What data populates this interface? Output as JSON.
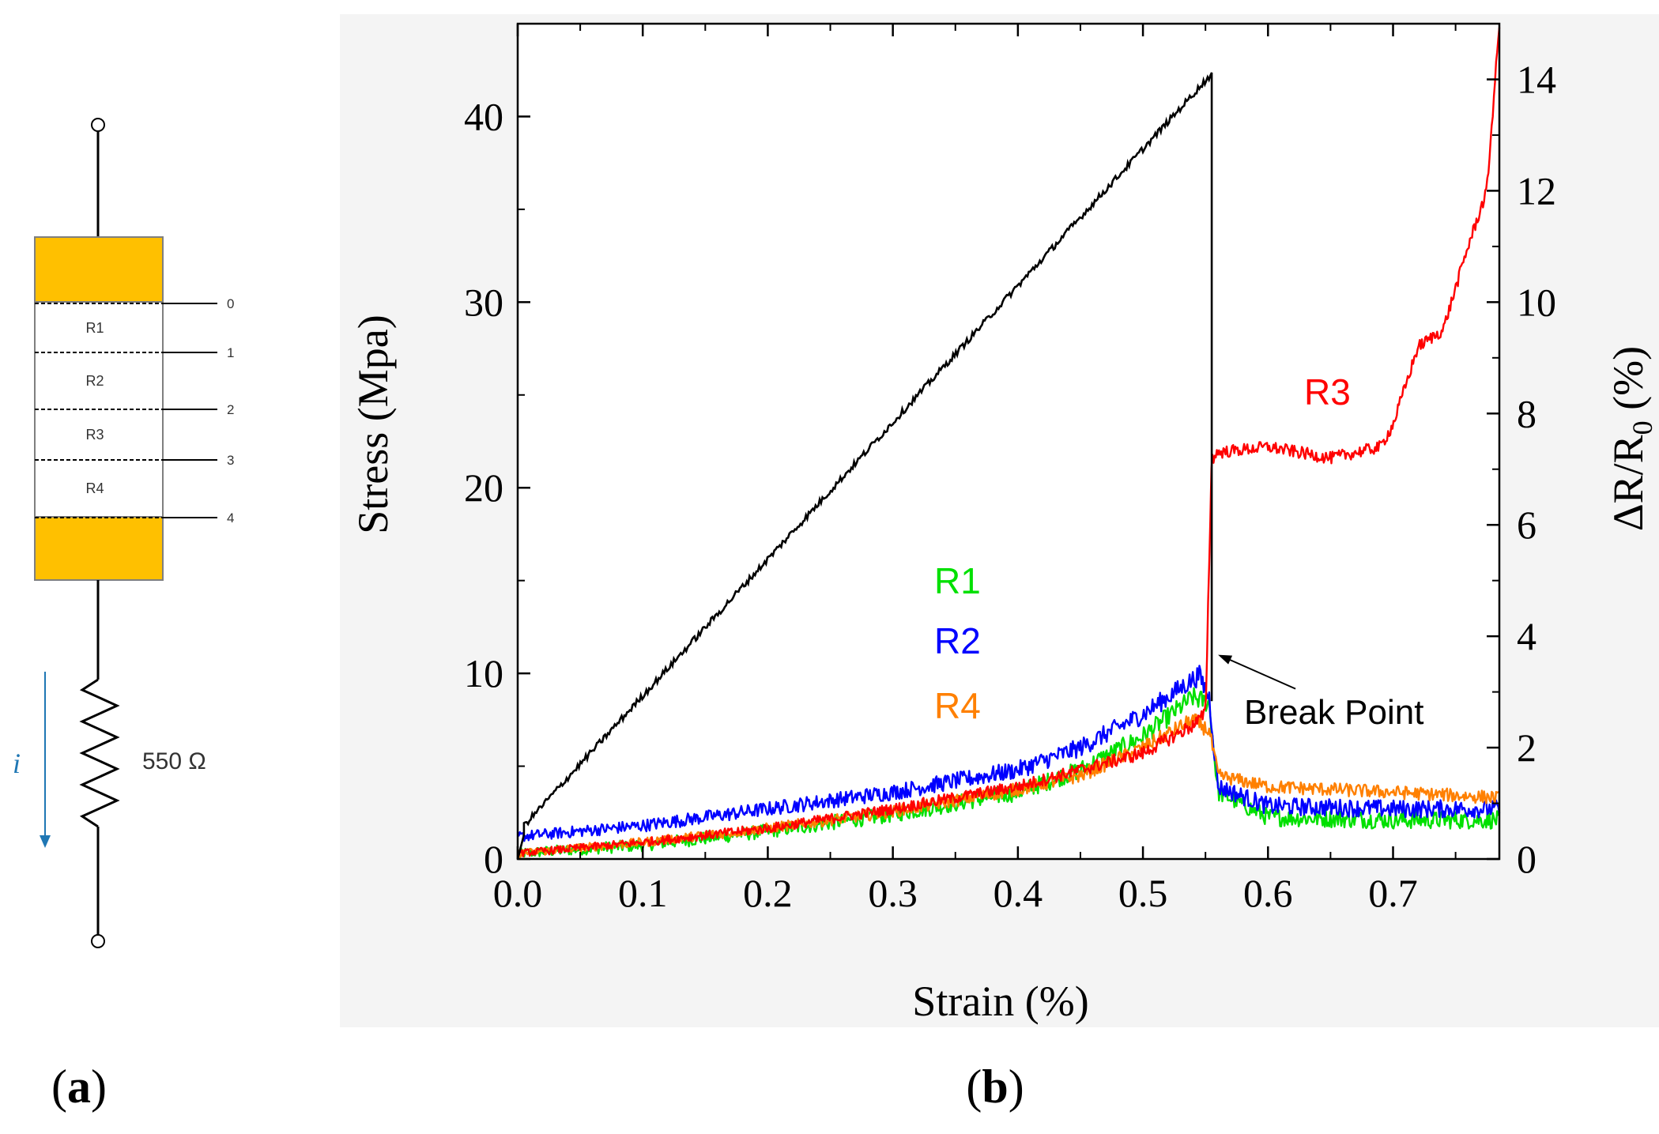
{
  "figure": {
    "panel_a_label": "(a)",
    "panel_b_label": "(b)"
  },
  "circuit": {
    "segments": [
      "R1",
      "R2",
      "R3",
      "R4"
    ],
    "electrodes": [
      "0",
      "1",
      "2",
      "3",
      "4"
    ],
    "resistor_value": "550 Ω",
    "current_symbol": "i",
    "colors": {
      "electrode": "#FFC000",
      "current": "#1F77B4"
    }
  },
  "chart_data": {
    "type": "line",
    "xlabel": "Strain (%)",
    "ylabel_left": "Stress (Mpa)",
    "ylabel_right": "ΔR/R0 (%)",
    "xlim": [
      0.0,
      0.785
    ],
    "ylim_left": [
      0,
      45
    ],
    "ylim_right": [
      0,
      15
    ],
    "x_ticks": [
      "0.0",
      "0.1",
      "0.2",
      "0.3",
      "0.4",
      "0.5",
      "0.6",
      "0.7"
    ],
    "y_left_ticks": [
      "0",
      "10",
      "20",
      "30",
      "40"
    ],
    "y_right_ticks": [
      "0",
      "2",
      "4",
      "6",
      "8",
      "10",
      "12",
      "14"
    ],
    "annotation": {
      "text": "Break Point",
      "x": 0.555,
      "y_left": 11
    },
    "series": [
      {
        "name": "Stress",
        "axis": "left",
        "color": "#000000",
        "x": [
          0.0,
          0.005,
          0.555,
          0.555
        ],
        "y": [
          0.0,
          1.8,
          42.3,
          8.5
        ]
      },
      {
        "name": "R1",
        "axis": "right",
        "color": "#00E000",
        "x": [
          0.0,
          0.1,
          0.2,
          0.3,
          0.4,
          0.45,
          0.5,
          0.54,
          0.553,
          0.56,
          0.6,
          0.7,
          0.785
        ],
        "y": [
          0.1,
          0.25,
          0.5,
          0.8,
          1.2,
          1.6,
          2.2,
          2.9,
          2.8,
          1.2,
          0.75,
          0.7,
          0.7
        ]
      },
      {
        "name": "R2",
        "axis": "right",
        "color": "#0000FF",
        "x": [
          0.0,
          0.1,
          0.2,
          0.3,
          0.4,
          0.45,
          0.5,
          0.545,
          0.553,
          0.56,
          0.6,
          0.7,
          0.785
        ],
        "y": [
          0.4,
          0.6,
          0.9,
          1.2,
          1.6,
          2.0,
          2.6,
          3.3,
          2.9,
          1.3,
          0.95,
          0.9,
          0.9
        ]
      },
      {
        "name": "R3",
        "axis": "right",
        "color": "#FF0000",
        "x": [
          0.0,
          0.1,
          0.2,
          0.3,
          0.4,
          0.5,
          0.54,
          0.55,
          0.555,
          0.56,
          0.6,
          0.65,
          0.69,
          0.7,
          0.72,
          0.74,
          0.76,
          0.775,
          0.785
        ],
        "y": [
          0.1,
          0.3,
          0.55,
          0.9,
          1.3,
          1.9,
          2.4,
          2.6,
          7.2,
          7.3,
          7.4,
          7.2,
          7.4,
          7.8,
          9.2,
          9.5,
          11.0,
          12.0,
          15.0
        ]
      },
      {
        "name": "R4",
        "axis": "right",
        "color": "#FF8000",
        "x": [
          0.0,
          0.1,
          0.2,
          0.3,
          0.4,
          0.45,
          0.5,
          0.54,
          0.553,
          0.56,
          0.6,
          0.7,
          0.785
        ],
        "y": [
          0.1,
          0.3,
          0.55,
          0.85,
          1.25,
          1.5,
          2.0,
          2.5,
          2.3,
          1.5,
          1.3,
          1.2,
          1.1
        ]
      }
    ]
  }
}
